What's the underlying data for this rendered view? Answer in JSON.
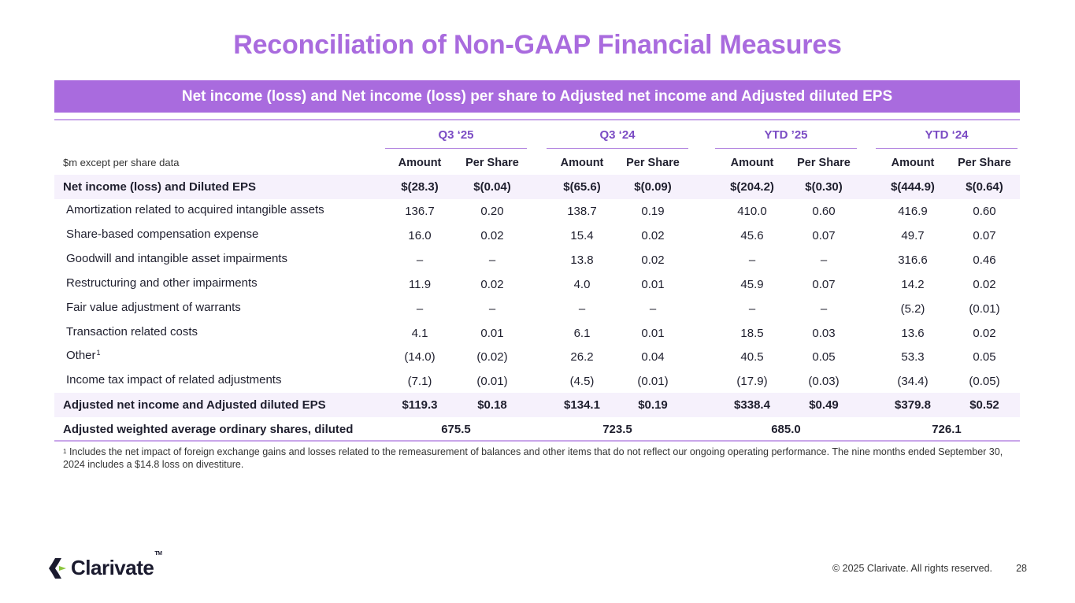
{
  "title": "Reconciliation of Non-GAAP Financial Measures",
  "banner": "Net income (loss) and Net income (loss) per share to Adjusted net income and Adjusted diluted EPS",
  "unit_label": "$m except per share data",
  "groups": [
    "Q3 ‘25",
    "Q3 ‘24",
    "YTD ’25",
    "YTD ‘24"
  ],
  "subheaders": [
    "Amount",
    "Per Share"
  ],
  "rows": [
    {
      "label": "Net income (loss) and Diluted EPS",
      "bold": true,
      "shade": true,
      "values": [
        "$(28.3)",
        "$(0.04)",
        "$(65.6)",
        "$(0.09)",
        "$(204.2)",
        "$(0.30)",
        "$(444.9)",
        "$(0.64)"
      ]
    },
    {
      "label": "Amortization related to acquired intangible assets",
      "sup": "",
      "values": [
        "136.7",
        "0.20",
        "138.7",
        "0.19",
        "410.0",
        "0.60",
        "416.9",
        "0.60"
      ]
    },
    {
      "label": "Share-based compensation expense",
      "sup": "",
      "values": [
        "16.0",
        "0.02",
        "15.4",
        "0.02",
        "45.6",
        "0.07",
        "49.7",
        "0.07"
      ]
    },
    {
      "label": "Goodwill and intangible asset impairments",
      "sup": "",
      "values": [
        "–",
        "–",
        "13.8",
        "0.02",
        "–",
        "–",
        "316.6",
        "0.46"
      ]
    },
    {
      "label": "Restructuring and other impairments",
      "sup": "",
      "values": [
        "11.9",
        "0.02",
        "4.0",
        "0.01",
        "45.9",
        "0.07",
        "14.2",
        "0.02"
      ]
    },
    {
      "label": "Fair value adjustment of warrants",
      "sup": "",
      "values": [
        "–",
        "–",
        "–",
        "–",
        "–",
        "–",
        "(5.2)",
        "(0.01)"
      ]
    },
    {
      "label": "Transaction related costs",
      "sup": "",
      "values": [
        "4.1",
        "0.01",
        "6.1",
        "0.01",
        "18.5",
        "0.03",
        "13.6",
        "0.02"
      ]
    },
    {
      "label": "Other",
      "sup": "1",
      "values": [
        "(14.0)",
        "(0.02)",
        "26.2",
        "0.04",
        "40.5",
        "0.05",
        "53.3",
        "0.05"
      ]
    },
    {
      "label": "Income tax impact of related adjustments",
      "sup": "",
      "values": [
        "(7.1)",
        "(0.01)",
        "(4.5)",
        "(0.01)",
        "(17.9)",
        "(0.03)",
        "(34.4)",
        "(0.05)"
      ]
    },
    {
      "label": "Adjusted net income and Adjusted diluted EPS",
      "bold": true,
      "shade": true,
      "values": [
        "$119.3",
        "$0.18",
        "$134.1",
        "$0.19",
        "$338.4",
        "$0.49",
        "$379.8",
        "$0.52"
      ]
    }
  ],
  "shares_row": {
    "label": "Adjusted weighted average ordinary shares, diluted",
    "values": [
      "675.5",
      "723.5",
      "685.0",
      "726.1"
    ]
  },
  "footnote": {
    "marker": "1",
    "text": "Includes the net impact of foreign exchange gains and losses related to the remeasurement of balances and other items that do not reflect our ongoing operating performance. The nine months ended September 30, 2024 includes a $14.8 loss on divestiture."
  },
  "logo_text": "Clarivate",
  "logo_tm": "TM",
  "copyright": "© 2025 Clarivate. All rights reserved.",
  "page_number": "28",
  "colors": {
    "accent": "#a96bde",
    "group_text": "#7b4cc4",
    "shade": "#f6f1fc"
  }
}
